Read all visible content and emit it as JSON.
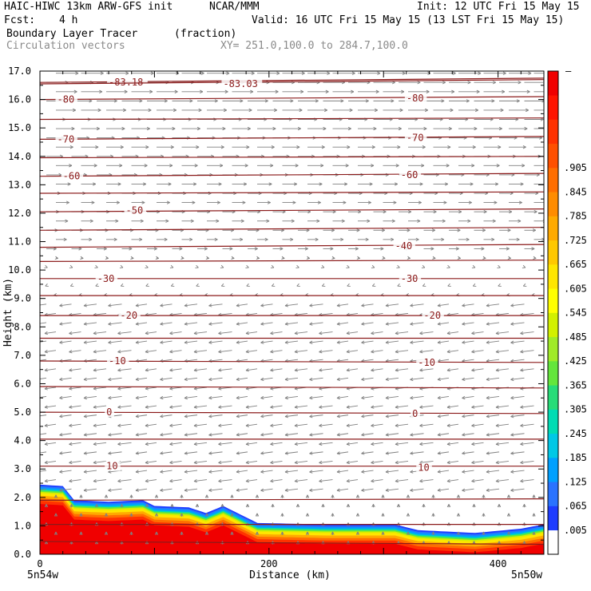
{
  "header": {
    "model": "HAIC-HIWC 13km ARW-GFS init",
    "org": "NCAR/MMM",
    "init": "Init: 12 UTC Fri 15 May 15",
    "fcst_label": "Fcst:",
    "fcst_value": "4 h",
    "valid": "Valid: 16 UTC Fri 15 May 15 (13 LST Fri 15 May 15)",
    "field": "Boundary Layer Tracer",
    "field_units": "(fraction)",
    "vectors": "Circulation vectors",
    "xy": "XY= 251.0,100.0 to 284.7,100.0"
  },
  "colors": {
    "isotherm": "#8b1a1a",
    "vector": "#808080",
    "palette": [
      "#ffffff",
      "#1e3cff",
      "#2a73ff",
      "#00a0ff",
      "#00c8e6",
      "#00dcb4",
      "#28dc78",
      "#64e63c",
      "#a0eb28",
      "#d2f000",
      "#ffff00",
      "#ffe600",
      "#ffc800",
      "#ffaa00",
      "#ff8c00",
      "#ff6e00",
      "#ff5000",
      "#ff3200",
      "#ff1400",
      "#f00000"
    ]
  },
  "chart_data": {
    "type": "heatmap",
    "xlabel": "Distance (km)",
    "ylabel": "Height (km)",
    "xlim": [
      0,
      440
    ],
    "ylim": [
      0,
      17
    ],
    "x_ticks": [
      "0",
      "200",
      "400"
    ],
    "y_ticks": [
      "0.0",
      "1.0",
      "2.0",
      "3.0",
      "4.0",
      "5.0",
      "6.0",
      "7.0",
      "8.0",
      "9.0",
      "10.0",
      "11.0",
      "12.0",
      "13.0",
      "14.0",
      "15.0",
      "16.0",
      "17.0"
    ],
    "x_end_labels": {
      "left": "5n54w",
      "right": "5n50w"
    },
    "colorbar_ticks": [
      ".005",
      ".065",
      ".125",
      ".185",
      ".245",
      ".305",
      ".365",
      ".425",
      ".485",
      ".545",
      ".605",
      ".665",
      ".725",
      ".785",
      ".845",
      ".905"
    ],
    "colorbar_top_label": "–",
    "tracer_top_km": [
      [
        0,
        2.45
      ],
      [
        20,
        2.4
      ],
      [
        30,
        1.9
      ],
      [
        60,
        1.85
      ],
      [
        90,
        1.9
      ],
      [
        100,
        1.7
      ],
      [
        130,
        1.65
      ],
      [
        145,
        1.45
      ],
      [
        160,
        1.7
      ],
      [
        175,
        1.4
      ],
      [
        190,
        1.1
      ],
      [
        250,
        1.05
      ],
      [
        310,
        1.05
      ],
      [
        330,
        0.85
      ],
      [
        380,
        0.75
      ],
      [
        420,
        0.9
      ],
      [
        440,
        1.05
      ]
    ],
    "isotherms": [
      {
        "label": "-83.18",
        "km": [
          [
            0,
            16.6
          ],
          [
            440,
            16.75
          ]
        ],
        "label_at": [
          [
            60,
            16.6
          ]
        ]
      },
      {
        "label": "-83.03",
        "km": [
          [
            0,
            16.55
          ],
          [
            440,
            16.7
          ]
        ],
        "label_at": [
          [
            160,
            16.55
          ]
        ]
      },
      {
        "label": "-80",
        "km": [
          [
            0,
            16.0
          ],
          [
            440,
            16.1
          ]
        ],
        "label_at": [
          [
            15,
            16.0
          ],
          [
            320,
            16.05
          ]
        ]
      },
      {
        "label": "",
        "km": [
          [
            0,
            15.3
          ],
          [
            440,
            15.35
          ]
        ],
        "label_at": []
      },
      {
        "label": "-70",
        "km": [
          [
            0,
            14.6
          ],
          [
            440,
            14.7
          ]
        ],
        "label_at": [
          [
            15,
            14.6
          ],
          [
            320,
            14.65
          ]
        ]
      },
      {
        "label": "",
        "km": [
          [
            0,
            13.95
          ],
          [
            440,
            14.0
          ]
        ],
        "label_at": []
      },
      {
        "label": "-60",
        "km": [
          [
            0,
            13.3
          ],
          [
            440,
            13.4
          ]
        ],
        "label_at": [
          [
            20,
            13.3
          ],
          [
            315,
            13.35
          ]
        ]
      },
      {
        "label": "",
        "km": [
          [
            0,
            12.7
          ],
          [
            440,
            12.75
          ]
        ],
        "label_at": []
      },
      {
        "label": "-50",
        "km": [
          [
            0,
            12.05
          ],
          [
            440,
            12.15
          ]
        ],
        "label_at": [
          [
            75,
            12.1
          ]
        ]
      },
      {
        "label": "",
        "km": [
          [
            0,
            11.4
          ],
          [
            440,
            11.5
          ]
        ],
        "label_at": []
      },
      {
        "label": "-40",
        "km": [
          [
            0,
            10.8
          ],
          [
            440,
            10.9
          ]
        ],
        "label_at": [
          [
            310,
            10.85
          ]
        ]
      },
      {
        "label": "",
        "km": [
          [
            0,
            10.3
          ],
          [
            440,
            10.35
          ]
        ],
        "label_at": []
      },
      {
        "label": "-30",
        "km": [
          [
            0,
            9.7
          ],
          [
            440,
            9.7
          ]
        ],
        "label_at": [
          [
            50,
            9.7
          ],
          [
            315,
            9.7
          ]
        ]
      },
      {
        "label": "",
        "km": [
          [
            0,
            9.1
          ],
          [
            440,
            9.1
          ]
        ],
        "label_at": []
      },
      {
        "label": "-20",
        "km": [
          [
            0,
            8.4
          ],
          [
            440,
            8.4
          ]
        ],
        "label_at": [
          [
            70,
            8.4
          ],
          [
            335,
            8.4
          ]
        ]
      },
      {
        "label": "",
        "km": [
          [
            0,
            7.6
          ],
          [
            440,
            7.6
          ]
        ],
        "label_at": []
      },
      {
        "label": "-10",
        "km": [
          [
            0,
            6.8
          ],
          [
            440,
            6.75
          ]
        ],
        "label_at": [
          [
            60,
            6.8
          ],
          [
            330,
            6.75
          ]
        ]
      },
      {
        "label": "",
        "km": [
          [
            0,
            5.9
          ],
          [
            440,
            5.85
          ]
        ],
        "label_at": []
      },
      {
        "label": "0",
        "km": [
          [
            0,
            5.0
          ],
          [
            440,
            4.95
          ]
        ],
        "label_at": [
          [
            58,
            5.0
          ],
          [
            325,
            4.95
          ]
        ]
      },
      {
        "label": "",
        "km": [
          [
            0,
            4.05
          ],
          [
            440,
            4.05
          ]
        ],
        "label_at": []
      },
      {
        "label": "10",
        "km": [
          [
            0,
            3.1
          ],
          [
            440,
            3.1
          ]
        ],
        "label_at": [
          [
            58,
            3.1
          ],
          [
            330,
            3.05
          ]
        ]
      },
      {
        "label": "",
        "km": [
          [
            0,
            1.9
          ],
          [
            440,
            1.95
          ]
        ],
        "label_at": []
      },
      {
        "label": "",
        "km": [
          [
            0,
            1.05
          ],
          [
            440,
            1.05
          ]
        ],
        "label_at": []
      },
      {
        "label": "",
        "km": [
          [
            0,
            0.45
          ],
          [
            440,
            0.35
          ]
        ],
        "label_at": []
      }
    ]
  }
}
